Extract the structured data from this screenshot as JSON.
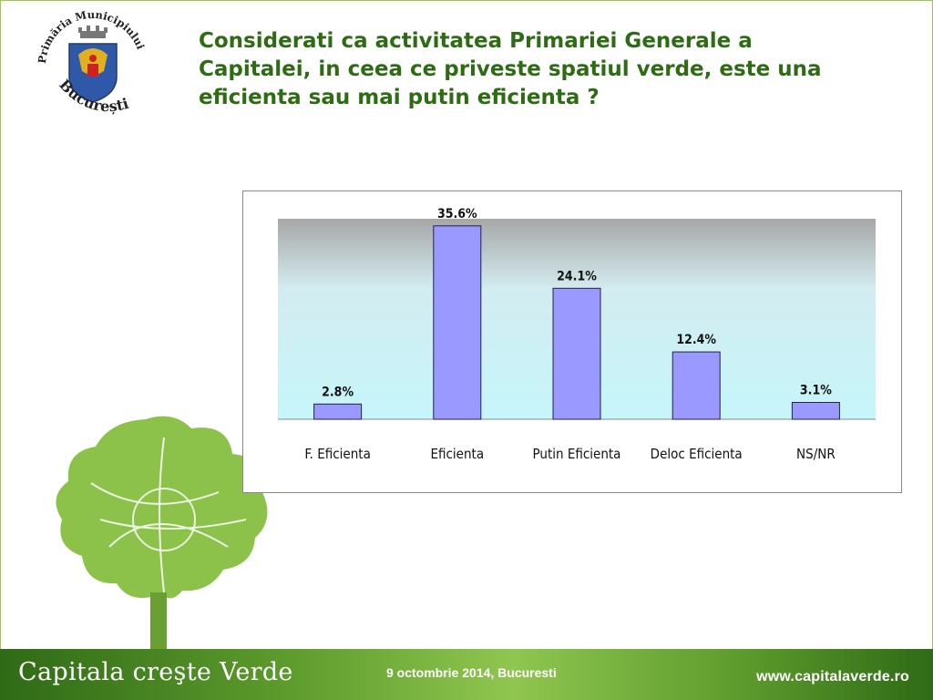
{
  "slide": {
    "title": "Considerati ca activitatea Primariei Generale a Capitalei, in ceea ce priveste spatiul verde, este una eficienta sau mai putin eficienta ?"
  },
  "logo": {
    "arc_text": "Primăria Municipiului",
    "city_text": "București",
    "icon": "coat-of-arms"
  },
  "footer": {
    "brand": "Capitala creşte Verde",
    "date": "9 octombrie 2014, Bucuresti",
    "url": "www.capitalaverde.ro"
  },
  "colors": {
    "title": "#2e6c14",
    "bar_fill": "#9999ff",
    "bar_stroke": "#222244",
    "footer_green": "#5c9a2c",
    "tree_green": "#8cc14a"
  },
  "chart_data": {
    "type": "bar",
    "categories": [
      "F. Eficienta",
      "Eficienta",
      "Putin Eficienta",
      "Deloc Eficienta",
      "NS/NR"
    ],
    "values": [
      2.8,
      35.6,
      24.1,
      12.4,
      3.1
    ],
    "data_labels": [
      "2.8%",
      "35.6%",
      "24.1%",
      "12.4%",
      "3.1%"
    ],
    "title": "",
    "xlabel": "",
    "ylabel": "",
    "ylim": [
      0,
      36.9
    ],
    "grid": false,
    "legend": "none",
    "plot_background": "gradient gray to light cyan"
  }
}
